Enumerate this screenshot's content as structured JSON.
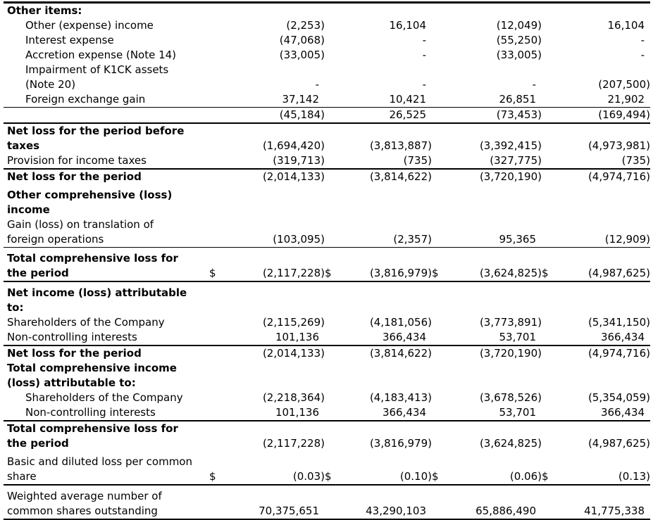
{
  "document": {
    "kind": "financial-statement-table",
    "currency_symbol": "$"
  },
  "table": {
    "rows": [
      {
        "label": "Other items:",
        "bold": true,
        "indent": false,
        "dollar": false,
        "border": "none",
        "space": false,
        "values": [
          "",
          "",
          "",
          ""
        ]
      },
      {
        "label": "Other (expense) income",
        "bold": false,
        "indent": true,
        "dollar": false,
        "border": "none",
        "space": false,
        "values": [
          "(2,253)",
          "16,104",
          "(12,049)",
          "16,104"
        ]
      },
      {
        "label": "Interest expense",
        "bold": false,
        "indent": true,
        "dollar": false,
        "border": "none",
        "space": false,
        "values": [
          "(47,068)",
          "-",
          "(55,250)",
          "-"
        ]
      },
      {
        "label": "Accretion expense (Note 14)",
        "bold": false,
        "indent": true,
        "dollar": false,
        "border": "none",
        "space": false,
        "values": [
          "(33,005)",
          "-",
          "(33,005)",
          "-"
        ]
      },
      {
        "label": "Impairment of K1CK assets\n(Note 20)",
        "bold": false,
        "indent": true,
        "dollar": false,
        "border": "none",
        "space": false,
        "values": [
          "-",
          "-",
          "-",
          "(207,500)"
        ]
      },
      {
        "label": "Foreign exchange gain",
        "bold": false,
        "indent": true,
        "dollar": false,
        "border": "thin",
        "space": false,
        "values": [
          "37,142",
          "10,421",
          "26,851",
          "21,902"
        ]
      },
      {
        "label": "",
        "bold": false,
        "indent": false,
        "dollar": false,
        "border": "thick",
        "space": false,
        "values": [
          "(45,184)",
          "26,525",
          "(73,453)",
          "(169,494)"
        ]
      },
      {
        "label": "Net loss for the period before\ntaxes",
        "bold": true,
        "indent": false,
        "dollar": false,
        "border": "none",
        "space": false,
        "values": [
          "(1,694,420)",
          "(3,813,887)",
          "(3,392,415)",
          "(4,973,981)"
        ]
      },
      {
        "label": "Provision for income taxes",
        "bold": false,
        "indent": false,
        "dollar": false,
        "border": "thick",
        "space": false,
        "values": [
          "(319,713)",
          "(735)",
          "(327,775)",
          "(735)"
        ]
      },
      {
        "label": "Net loss for the period",
        "bold": true,
        "indent": false,
        "dollar": false,
        "border": "none",
        "space": false,
        "values": [
          "(2,014,133)",
          "(3,814,622)",
          "(3,720,190)",
          "(4,974,716)"
        ]
      },
      {
        "label": "Other comprehensive (loss)\nincome",
        "bold": true,
        "indent": false,
        "dollar": false,
        "border": "none",
        "space": true,
        "values": [
          "",
          "",
          "",
          ""
        ]
      },
      {
        "label": "Gain (loss) on translation of\nforeign operations",
        "bold": false,
        "indent": false,
        "dollar": false,
        "border": "thin",
        "space": false,
        "values": [
          "(103,095)",
          "(2,357)",
          "95,365",
          "(12,909)"
        ]
      },
      {
        "label": "Total comprehensive loss for\nthe period",
        "bold": true,
        "indent": false,
        "dollar": true,
        "border": "thick",
        "space": true,
        "values": [
          "(2,117,228)",
          "(3,816,979)",
          "(3,624,825)",
          "(4,987,625)"
        ]
      },
      {
        "label": "Net income (loss) attributable\nto:",
        "bold": true,
        "indent": false,
        "dollar": false,
        "border": "none",
        "space": true,
        "values": [
          "",
          "",
          "",
          ""
        ]
      },
      {
        "label": "Shareholders of the Company",
        "bold": false,
        "indent": false,
        "dollar": false,
        "border": "none",
        "space": false,
        "values": [
          "(2,115,269)",
          "(4,181,056)",
          "(3,773,891)",
          "(5,341,150)"
        ]
      },
      {
        "label": "Non-controlling interests",
        "bold": false,
        "indent": false,
        "dollar": false,
        "border": "thick",
        "space": false,
        "values": [
          "101,136",
          "366,434",
          "53,701",
          "366,434"
        ]
      },
      {
        "label": "Net loss for the period",
        "bold": true,
        "indent": false,
        "dollar": false,
        "border": "none",
        "space": false,
        "values": [
          "(2,014,133)",
          "(3,814,622)",
          "(3,720,190)",
          "(4,974,716)"
        ]
      },
      {
        "label": "Total comprehensive income\n(loss) attributable to:",
        "bold": true,
        "indent": false,
        "dollar": false,
        "border": "none",
        "space": false,
        "values": [
          "",
          "",
          "",
          ""
        ]
      },
      {
        "label": "Shareholders of the Company",
        "bold": false,
        "indent": true,
        "dollar": false,
        "border": "none",
        "space": false,
        "values": [
          "(2,218,364)",
          "(4,183,413)",
          "(3,678,526)",
          "(5,354,059)"
        ]
      },
      {
        "label": "Non-controlling interests",
        "bold": false,
        "indent": true,
        "dollar": false,
        "border": "thick",
        "space": false,
        "values": [
          "101,136",
          "366,434",
          "53,701",
          "366,434"
        ]
      },
      {
        "label": "Total comprehensive loss for\nthe period",
        "bold": true,
        "indent": false,
        "dollar": false,
        "border": "none",
        "space": false,
        "values": [
          "(2,117,228)",
          "(3,816,979)",
          "(3,624,825)",
          "(4,987,625)"
        ]
      },
      {
        "label": "Basic and diluted loss per common\nshare",
        "bold": false,
        "indent": false,
        "dollar": true,
        "border": "thick",
        "space": true,
        "values": [
          "(0.03)",
          "(0.10)",
          "(0.06)",
          "(0.13)"
        ]
      },
      {
        "label": "Weighted average number of\ncommon shares outstanding",
        "bold": false,
        "indent": false,
        "dollar": false,
        "border": "none",
        "space": true,
        "values": [
          "70,375,651",
          "43,290,103",
          "65,886,490",
          "41,775,338"
        ]
      }
    ]
  }
}
